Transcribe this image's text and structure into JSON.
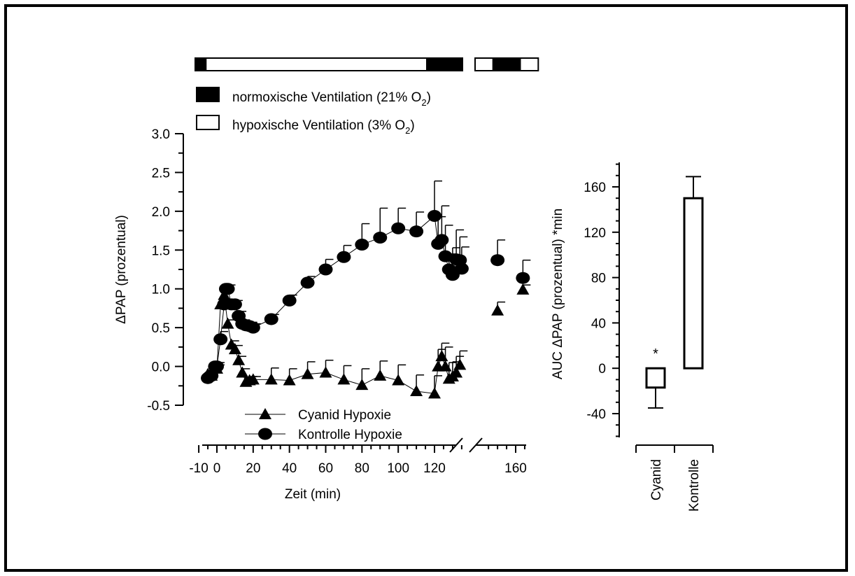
{
  "colors": {
    "ink": "#000000",
    "background": "#ffffff"
  },
  "ventilation_legend": {
    "normoxic_prefix": "normoxische Ventilation (21% O",
    "normoxic_sub": "2",
    "normoxic_suffix": ")",
    "hypoxic_prefix": "hypoxische Ventilation (3% O",
    "hypoxic_sub": "2",
    "hypoxic_suffix": ")"
  },
  "chart_data": [
    {
      "type": "line",
      "title": "",
      "xlabel": "Zeit (min)",
      "ylabel": "ΔPAP (prozentual)",
      "xlim": [
        -10,
        165
      ],
      "ylim": [
        -0.5,
        3.0
      ],
      "x_broken_axis": true,
      "x_ticks": [
        "-10",
        "0",
        "20",
        "40",
        "60",
        "80",
        "100",
        "120",
        "160"
      ],
      "y_ticks": [
        "3.0",
        "2.5",
        "2.0",
        "1.5",
        "1.0",
        "0.5",
        "0.0",
        "-0.5"
      ],
      "grid": false,
      "legend_position": "bottom-center",
      "ventilation_bar": [
        {
          "state": "normoxic",
          "start": -10,
          "end": -4
        },
        {
          "state": "hypoxic",
          "start": -4,
          "end": 120
        },
        {
          "state": "normoxic",
          "start": 120,
          "end": 140
        },
        {
          "state": "hypoxic",
          "start": 143,
          "end": 149
        },
        {
          "state": "normoxic",
          "start": 149,
          "end": 158
        },
        {
          "state": "hypoxic",
          "start": 158,
          "end": 164
        }
      ],
      "series": [
        {
          "name": "Kontrolle Hypoxie",
          "marker": "circle",
          "x": [
            -5,
            -4,
            -3,
            -1,
            0,
            2,
            4,
            5,
            6,
            8,
            10,
            12,
            14,
            16,
            18,
            20,
            30,
            40,
            50,
            60,
            70,
            80,
            90,
            100,
            110,
            120,
            122,
            124,
            126,
            128,
            130,
            132,
            134,
            135
          ],
          "y": [
            -0.15,
            -0.13,
            -0.12,
            0.0,
            0.0,
            0.35,
            0.8,
            1.0,
            1.0,
            0.8,
            0.8,
            0.65,
            0.55,
            0.53,
            0.52,
            0.5,
            0.61,
            0.85,
            1.08,
            1.25,
            1.41,
            1.57,
            1.66,
            1.78,
            1.74,
            1.94,
            1.58,
            1.63,
            1.42,
            1.25,
            1.18,
            1.38,
            1.37,
            1.26
          ],
          "err": [
            0.07,
            0.05,
            0.05,
            0.05,
            0.05,
            0.1,
            0.06,
            0.05,
            0.05,
            0.05,
            0.05,
            0.06,
            0.05,
            0.05,
            0.05,
            0.05,
            0.06,
            0.07,
            0.08,
            0.13,
            0.15,
            0.27,
            0.38,
            0.26,
            0.25,
            0.45,
            0.35,
            0.44,
            0.4,
            0.2,
            0.35,
            0.38,
            0.3,
            0.28
          ],
          "broken_x": [
            150,
            164
          ],
          "broken_y": [
            1.37,
            1.14
          ],
          "broken_err": [
            0.26,
            0.23
          ]
        },
        {
          "name": "Cyanid Hypoxie",
          "marker": "triangle",
          "x": [
            -5,
            -3,
            0,
            2,
            4,
            6,
            8,
            10,
            12,
            14,
            16,
            18,
            20,
            30,
            40,
            50,
            60,
            70,
            80,
            90,
            100,
            110,
            120,
            122,
            124,
            126,
            128,
            130,
            132,
            134
          ],
          "y": [
            -0.1,
            -0.12,
            -0.03,
            0.8,
            0.92,
            0.55,
            0.28,
            0.22,
            0.08,
            -0.08,
            -0.2,
            -0.18,
            -0.17,
            -0.17,
            -0.18,
            -0.1,
            -0.08,
            -0.17,
            -0.24,
            -0.12,
            -0.18,
            -0.32,
            -0.35,
            0.0,
            0.13,
            0.0,
            -0.16,
            -0.13,
            -0.08,
            0.02
          ],
          "err": [
            0.05,
            0.05,
            0.05,
            0.05,
            0.05,
            0.05,
            0.05,
            0.05,
            0.05,
            0.05,
            0.05,
            0.05,
            0.04,
            0.15,
            0.15,
            0.16,
            0.16,
            0.18,
            0.21,
            0.19,
            0.2,
            0.21,
            0.23,
            0.22,
            0.17,
            0.25,
            0.21,
            0.19,
            0.21,
            0.18
          ],
          "broken_x": [
            150,
            164
          ],
          "broken_y": [
            0.72,
            0.99
          ],
          "broken_err": [
            0.11,
            0.06
          ]
        }
      ]
    },
    {
      "type": "bar",
      "title": "",
      "xlabel": "",
      "ylabel": "AUC ΔPAP (prozentual) *min",
      "categories": [
        "Cyanid",
        "Kontrolle"
      ],
      "values": [
        -17,
        150
      ],
      "err": [
        18,
        19
      ],
      "annotations": [
        "*"
      ],
      "ylim": [
        -60,
        180
      ],
      "y_ticks": [
        "160",
        "120",
        "80",
        "40",
        "0",
        "-40"
      ],
      "grid": false
    }
  ]
}
